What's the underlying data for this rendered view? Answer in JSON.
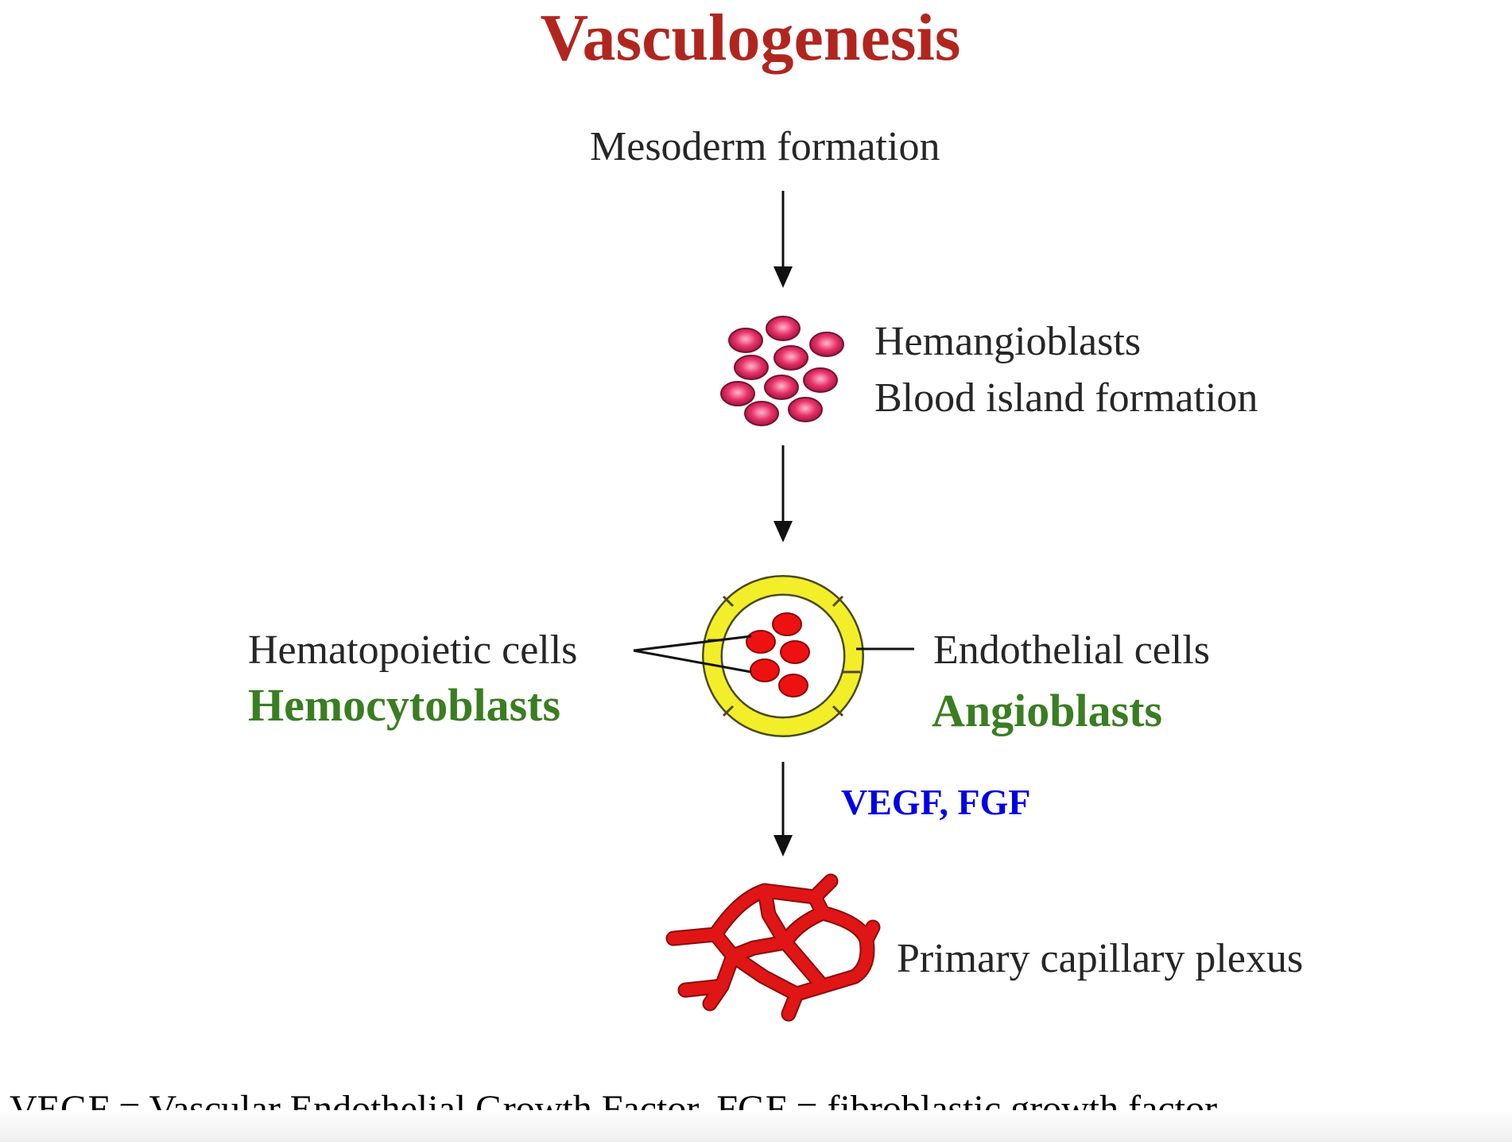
{
  "title": "Vasculogenesis",
  "steps": {
    "mesoderm": "Mesoderm formation",
    "hemangioblasts": "Hemangioblasts",
    "blood_island": "Blood island formation",
    "hematopoietic": "Hematopoietic cells",
    "hemocytoblasts": "Hemocytoblasts",
    "endothelial": "Endothelial cells",
    "angioblasts": "Angioblasts",
    "factors": "VEGF, FGF",
    "plexus": "Primary capillary plexus"
  },
  "footnote": "VEGF = Vascular Endothelial Growth Factor, FGF = fibroblastic growth factor",
  "colors": {
    "title": "#b0261f",
    "green_label": "#3a7d22",
    "blue_label": "#0000e6",
    "cell_pink": "#e0245a",
    "cell_red": "#ee1111",
    "endothelium_yellow": "#f2ee2a",
    "vessel_red": "#e01515"
  }
}
